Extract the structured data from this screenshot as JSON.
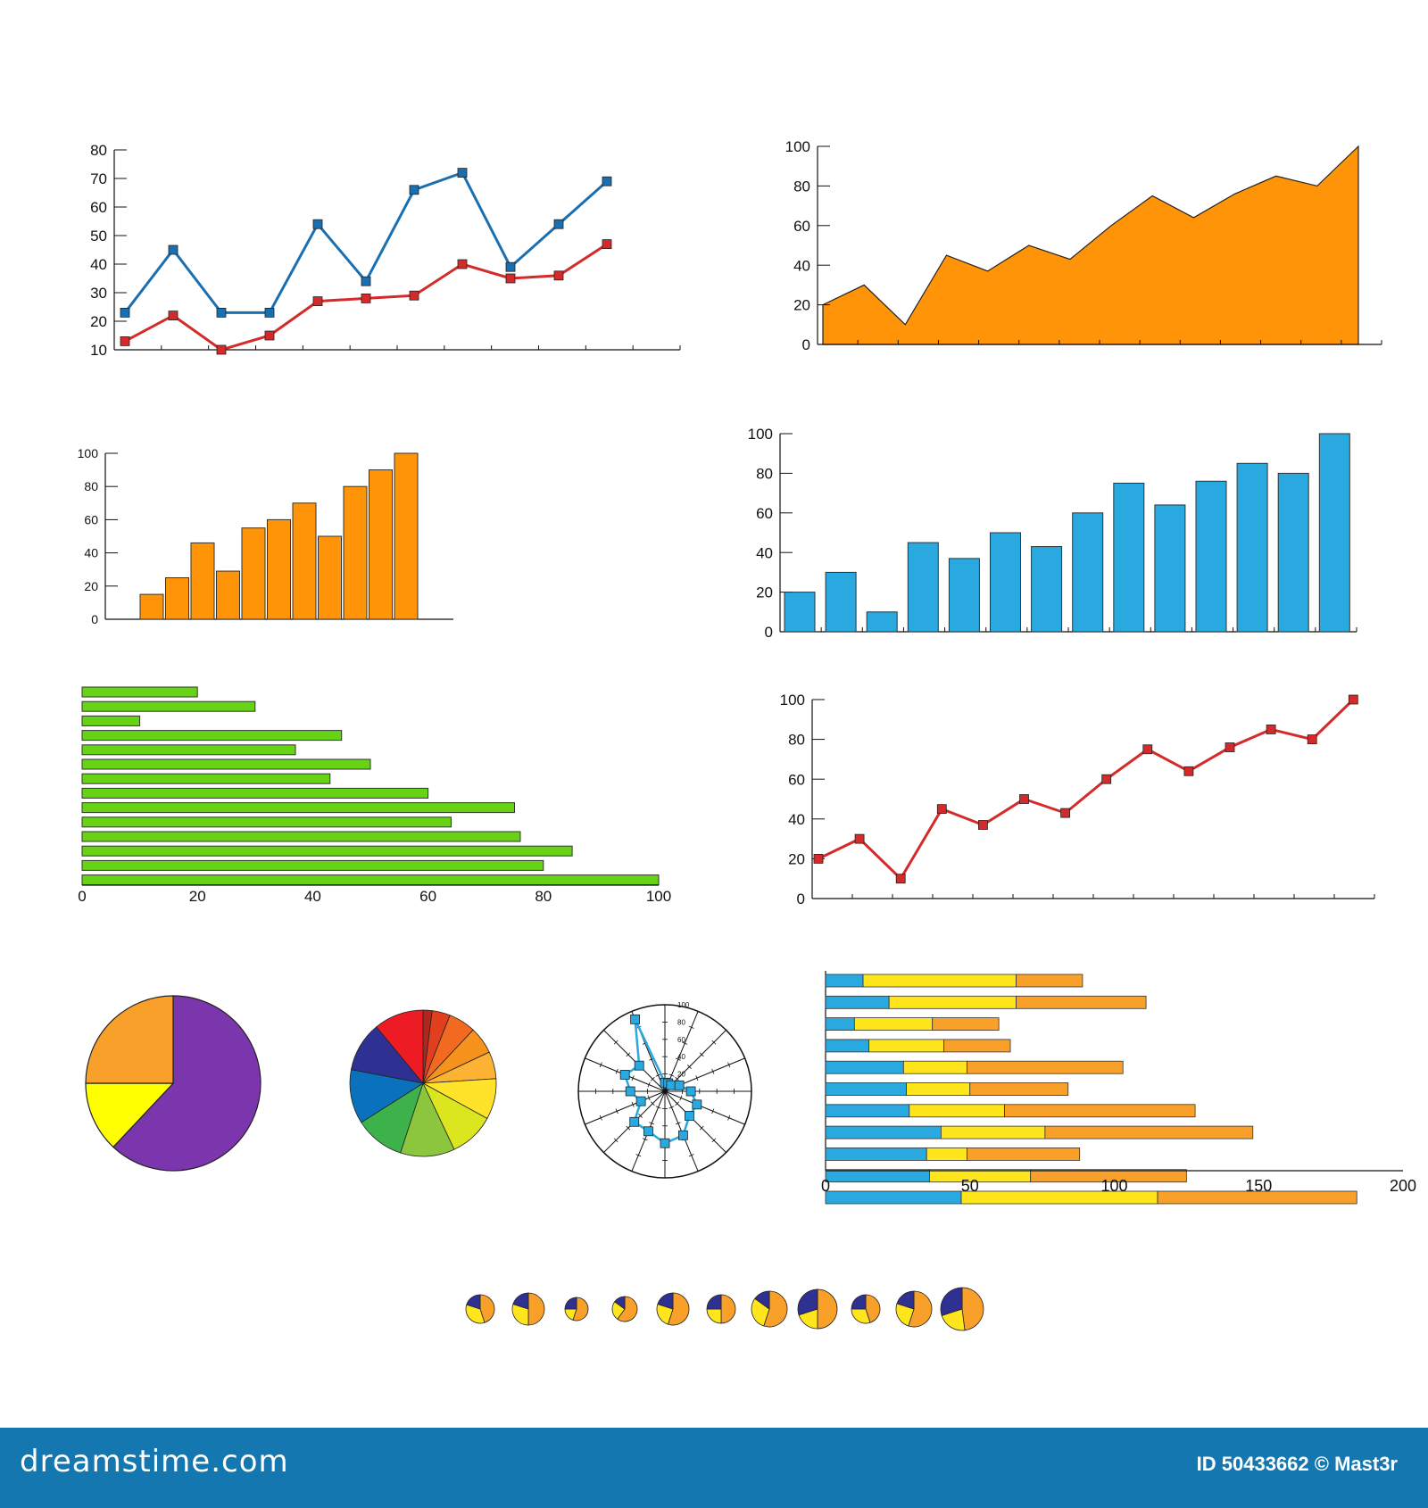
{
  "footer": {
    "site": "dreamstime.com",
    "credit": "ID 50433662 © Mast3r"
  },
  "chart_data": [
    {
      "type": "line",
      "ylim": [
        10,
        80
      ],
      "yticks": [
        "10",
        "20",
        "30",
        "40",
        "50",
        "60",
        "70",
        "80"
      ],
      "series": [
        {
          "color": "#1a6fb0",
          "values": [
            23,
            45,
            23,
            23,
            54,
            34,
            66,
            72,
            39,
            54,
            69
          ]
        },
        {
          "color": "#d42a2a",
          "values": [
            13,
            22,
            10,
            15,
            27,
            28,
            29,
            40,
            35,
            36,
            47
          ]
        }
      ]
    },
    {
      "type": "area",
      "ylim": [
        0,
        100
      ],
      "yticks": [
        "0",
        "20",
        "40",
        "60",
        "80",
        "100"
      ],
      "color": "#ff9408",
      "values": [
        20,
        30,
        10,
        45,
        37,
        50,
        43,
        60,
        75,
        64,
        76,
        85,
        80,
        100
      ]
    },
    {
      "type": "bar",
      "ylim": [
        0,
        100
      ],
      "yticks": [
        "0",
        "20",
        "40",
        "60",
        "80",
        "100"
      ],
      "color": "#ff9408",
      "values": [
        15,
        25,
        46,
        29,
        55,
        60,
        70,
        50,
        80,
        90,
        100
      ]
    },
    {
      "type": "bar",
      "ylim": [
        0,
        100
      ],
      "yticks": [
        "0",
        "20",
        "40",
        "60",
        "80",
        "100"
      ],
      "color": "#2aa8e0",
      "values": [
        20,
        30,
        10,
        45,
        37,
        50,
        43,
        60,
        75,
        64,
        76,
        85,
        80,
        100
      ]
    },
    {
      "type": "bar",
      "orientation": "horizontal",
      "xlim": [
        0,
        100
      ],
      "xticks": [
        "0",
        "20",
        "40",
        "60",
        "80",
        "100"
      ],
      "color": "#66d414",
      "values": [
        20,
        30,
        10,
        45,
        37,
        50,
        43,
        60,
        75,
        64,
        76,
        85,
        80,
        100
      ]
    },
    {
      "type": "line",
      "ylim": [
        0,
        100
      ],
      "yticks": [
        "0",
        "20",
        "40",
        "60",
        "80",
        "100"
      ],
      "color": "#d42a2a",
      "values": [
        20,
        30,
        10,
        45,
        37,
        50,
        43,
        60,
        75,
        64,
        76,
        85,
        80,
        100
      ]
    },
    {
      "type": "pie",
      "slices": [
        {
          "value": 62,
          "color": "#7b35ad"
        },
        {
          "value": 13,
          "color": "#ffff00"
        },
        {
          "value": 25,
          "color": "#f9a02a"
        }
      ]
    },
    {
      "type": "pie",
      "slices": [
        {
          "value": 2,
          "color": "#b3261e"
        },
        {
          "value": 4,
          "color": "#e0401e"
        },
        {
          "value": 6,
          "color": "#f26a1f"
        },
        {
          "value": 6,
          "color": "#f7931d"
        },
        {
          "value": 6,
          "color": "#fcb334"
        },
        {
          "value": 9,
          "color": "#ffe22a"
        },
        {
          "value": 10,
          "color": "#dce61f"
        },
        {
          "value": 12,
          "color": "#8cc63f"
        },
        {
          "value": 11,
          "color": "#3db24a"
        },
        {
          "value": 12,
          "color": "#0a72bc"
        },
        {
          "value": 11,
          "color": "#2e3192"
        },
        {
          "value": 11,
          "color": "#ed1c24"
        }
      ]
    },
    {
      "type": "radar",
      "rlim": [
        0,
        100
      ],
      "rticks": [
        "20",
        "40",
        "60",
        "80",
        "100"
      ],
      "color": "#2aa8e0",
      "values": [
        10,
        10,
        10,
        18,
        30,
        40,
        40,
        55,
        60,
        50,
        50,
        30,
        40,
        50,
        42,
        90
      ]
    },
    {
      "type": "bar",
      "orientation": "horizontal",
      "stacked": true,
      "xlim": [
        0,
        200
      ],
      "xticks": [
        "0",
        "50",
        "100",
        "150",
        "200"
      ],
      "series": [
        {
          "color": "#2aa8e0",
          "values": [
            13,
            22,
            10,
            15,
            27,
            28,
            29,
            40,
            35,
            36,
            47
          ]
        },
        {
          "color": "#ffe61c",
          "values": [
            53,
            44,
            27,
            26,
            22,
            22,
            33,
            36,
            14,
            35,
            68
          ]
        },
        {
          "color": "#f9a02a",
          "values": [
            23,
            45,
            23,
            23,
            54,
            34,
            66,
            72,
            39,
            54,
            69
          ]
        }
      ]
    },
    {
      "type": "pie",
      "multiples": [
        [
          45,
          35,
          20
        ],
        [
          50,
          30,
          20
        ],
        [
          55,
          20,
          25
        ],
        [
          60,
          25,
          15
        ],
        [
          55,
          25,
          20
        ],
        [
          50,
          25,
          25
        ],
        [
          55,
          30,
          15
        ],
        [
          50,
          20,
          30
        ],
        [
          45,
          30,
          25
        ],
        [
          55,
          25,
          20
        ],
        [
          48,
          22,
          30
        ]
      ],
      "colors": [
        "#f9a02a",
        "#ffe61c",
        "#2e3192"
      ]
    }
  ]
}
